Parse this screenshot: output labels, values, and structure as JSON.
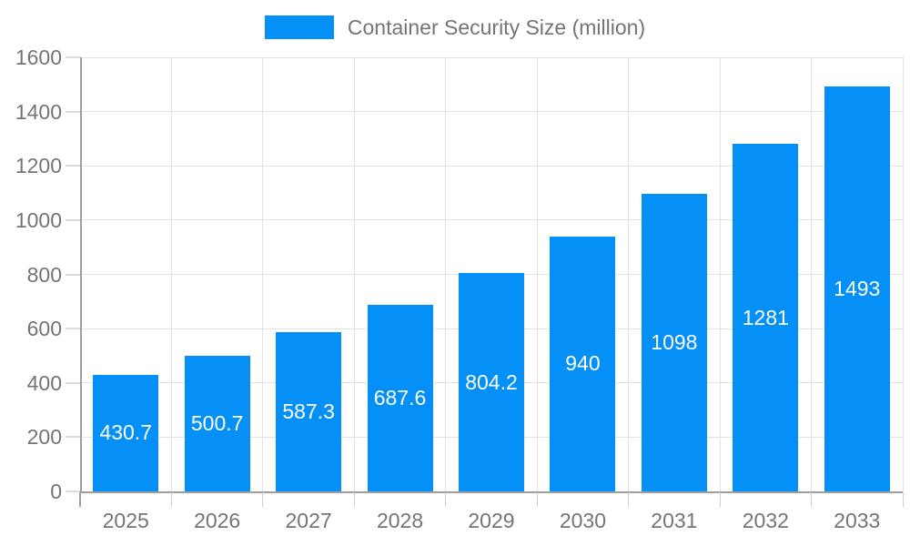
{
  "legend": {
    "label": "Container Security Size (million)"
  },
  "chart_data": {
    "type": "bar",
    "title": "Container Security Size (million)",
    "series_name": "Container Security Size (million)",
    "categories": [
      "2025",
      "2026",
      "2027",
      "2028",
      "2029",
      "2030",
      "2031",
      "2032",
      "2033"
    ],
    "values": [
      430.7,
      500.7,
      587.3,
      687.6,
      804.2,
      940,
      1098,
      1281,
      1493
    ],
    "xlabel": "",
    "ylabel": "",
    "ylim": [
      0,
      1600
    ],
    "ytick_interval": 200,
    "yticks": [
      0,
      200,
      400,
      600,
      800,
      1000,
      1200,
      1400,
      1600
    ],
    "grid": true,
    "legend_position": "top-center",
    "value_labels": "inside-center",
    "colors": {
      "bar": "#0590F7",
      "value_label": "#FFFFFF",
      "axis_text": "#757575",
      "grid_line": "#E3E3E3",
      "axis_line": "#9E9E9E",
      "tick": "#CFCFCF",
      "background": "#FFFFFF"
    }
  }
}
